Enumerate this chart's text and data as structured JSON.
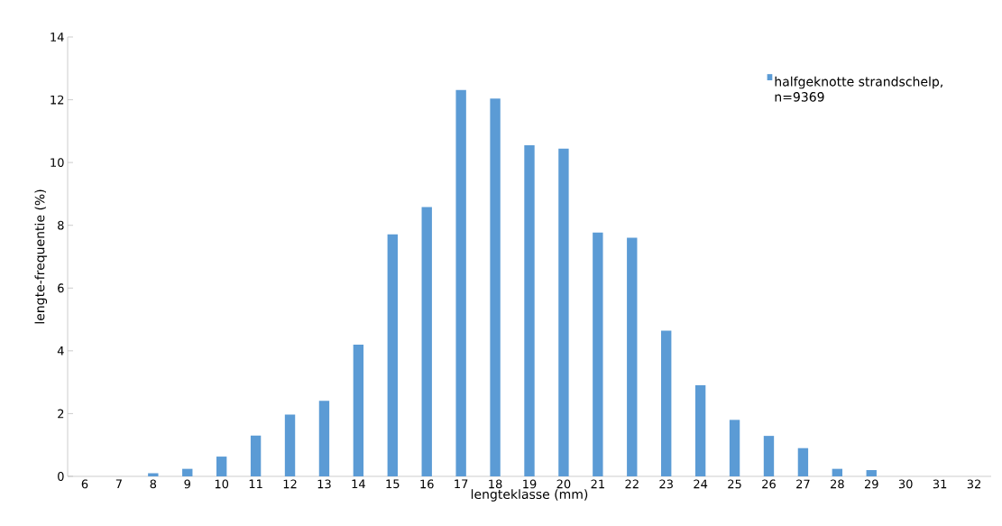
{
  "chart_data": {
    "type": "bar",
    "xlabel": "lengteklasse (mm)",
    "ylabel": "lengte-frequentie (%)",
    "categories": [
      "6",
      "7",
      "8",
      "9",
      "10",
      "11",
      "12",
      "13",
      "14",
      "15",
      "16",
      "17",
      "18",
      "19",
      "20",
      "21",
      "22",
      "23",
      "24",
      "25",
      "26",
      "27",
      "28",
      "29",
      "30",
      "31",
      "32"
    ],
    "series": [
      {
        "name": "halfgeknotte strandschelp, n=9369",
        "color": "#5b9bd5",
        "values": [
          0,
          0,
          0.1,
          0.24,
          0.63,
          1.3,
          1.97,
          2.41,
          4.2,
          7.71,
          8.58,
          12.31,
          12.04,
          10.55,
          10.44,
          7.77,
          7.6,
          4.64,
          2.9,
          1.8,
          1.29,
          0.9,
          0.24,
          0.2,
          0,
          0,
          0
        ]
      }
    ],
    "ylim": [
      0,
      14
    ],
    "yticks": [
      0,
      2,
      4,
      6,
      8,
      10,
      12,
      14
    ],
    "legend": "top right"
  }
}
